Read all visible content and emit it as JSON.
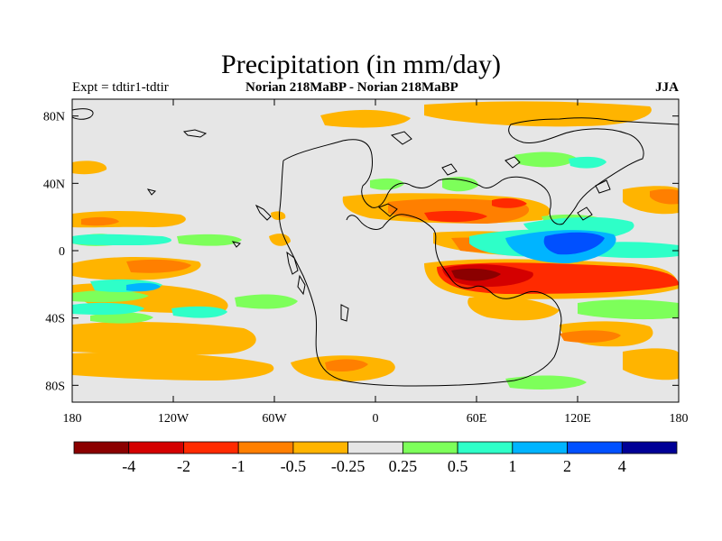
{
  "header": {
    "title": "Precipitation (in mm/day)",
    "experiment": "Expt = tdtir1-tdtir",
    "comparison": "Norian   218MaBP - Norian   218MaBP",
    "season": "JJA"
  },
  "map": {
    "lon_range": [
      -180,
      180
    ],
    "lat_range": [
      -90,
      90
    ],
    "lon_ticks": [
      {
        "value": -180,
        "label": "180"
      },
      {
        "value": -120,
        "label": "120W"
      },
      {
        "value": -60,
        "label": "60W"
      },
      {
        "value": 0,
        "label": "0"
      },
      {
        "value": 60,
        "label": "60E"
      },
      {
        "value": 120,
        "label": "120E"
      },
      {
        "value": 180,
        "label": "180"
      }
    ],
    "lat_ticks": [
      {
        "value": 80,
        "label": "80N"
      },
      {
        "value": 40,
        "label": "40N"
      },
      {
        "value": 0,
        "label": "0"
      },
      {
        "value": -40,
        "label": "40S"
      },
      {
        "value": -80,
        "label": "80S"
      }
    ],
    "background_color": "#e6e6e6"
  },
  "legend": {
    "colors": [
      "#8b0000",
      "#d40000",
      "#ff2a00",
      "#ff7f00",
      "#ffb400",
      "#e6e6e6",
      "#7dff5a",
      "#2effc8",
      "#00b4ff",
      "#0050ff",
      "#000096"
    ],
    "labels": [
      "-4",
      "-2",
      "-1",
      "-0.5",
      "-0.25",
      "0.25",
      "0.5",
      "1",
      "2",
      "4"
    ]
  }
}
